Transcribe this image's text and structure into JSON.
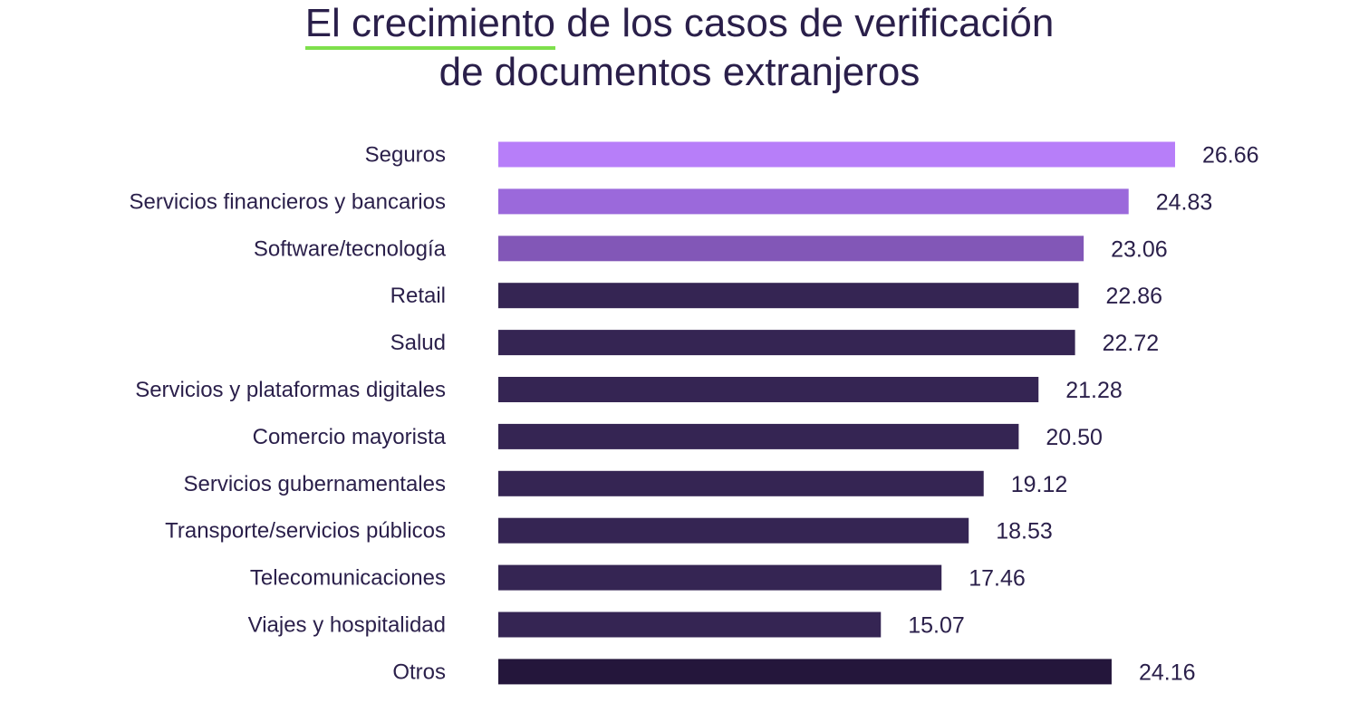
{
  "chart_data": {
    "type": "bar",
    "orientation": "horizontal",
    "title_highlight": "El crecimiento",
    "title_rest_line1": " de los casos de verificación",
    "title_line2": "de documentos extranjeros",
    "categories": [
      "Seguros",
      "Servicios financieros y bancarios",
      "Software/tecnología",
      "Retail",
      "Salud",
      "Servicios y plataformas digitales",
      "Comercio mayorista",
      "Servicios gubernamentales",
      "Transporte/servicios públicos",
      "Telecomunicaciones",
      "Viajes y hospitalidad",
      "Otros"
    ],
    "values": [
      26.66,
      24.83,
      23.06,
      22.86,
      22.72,
      21.28,
      20.5,
      19.12,
      18.53,
      17.46,
      15.07,
      24.16
    ],
    "value_labels": [
      "26.66",
      "24.83",
      "23.06",
      "22.86",
      "22.72",
      "21.28",
      "20.50",
      "19.12",
      "18.53",
      "17.46",
      "15.07",
      "24.16"
    ],
    "colors": [
      "#b77ef9",
      "#9b69db",
      "#8257b7",
      "#352553",
      "#352553",
      "#352553",
      "#352553",
      "#352553",
      "#352553",
      "#352553",
      "#352553",
      "#24163b"
    ],
    "highlight_color": "#7ee04c",
    "xlim": [
      0,
      26.66
    ],
    "xlabel": "",
    "ylabel": "",
    "grid": false,
    "legend": "none"
  }
}
